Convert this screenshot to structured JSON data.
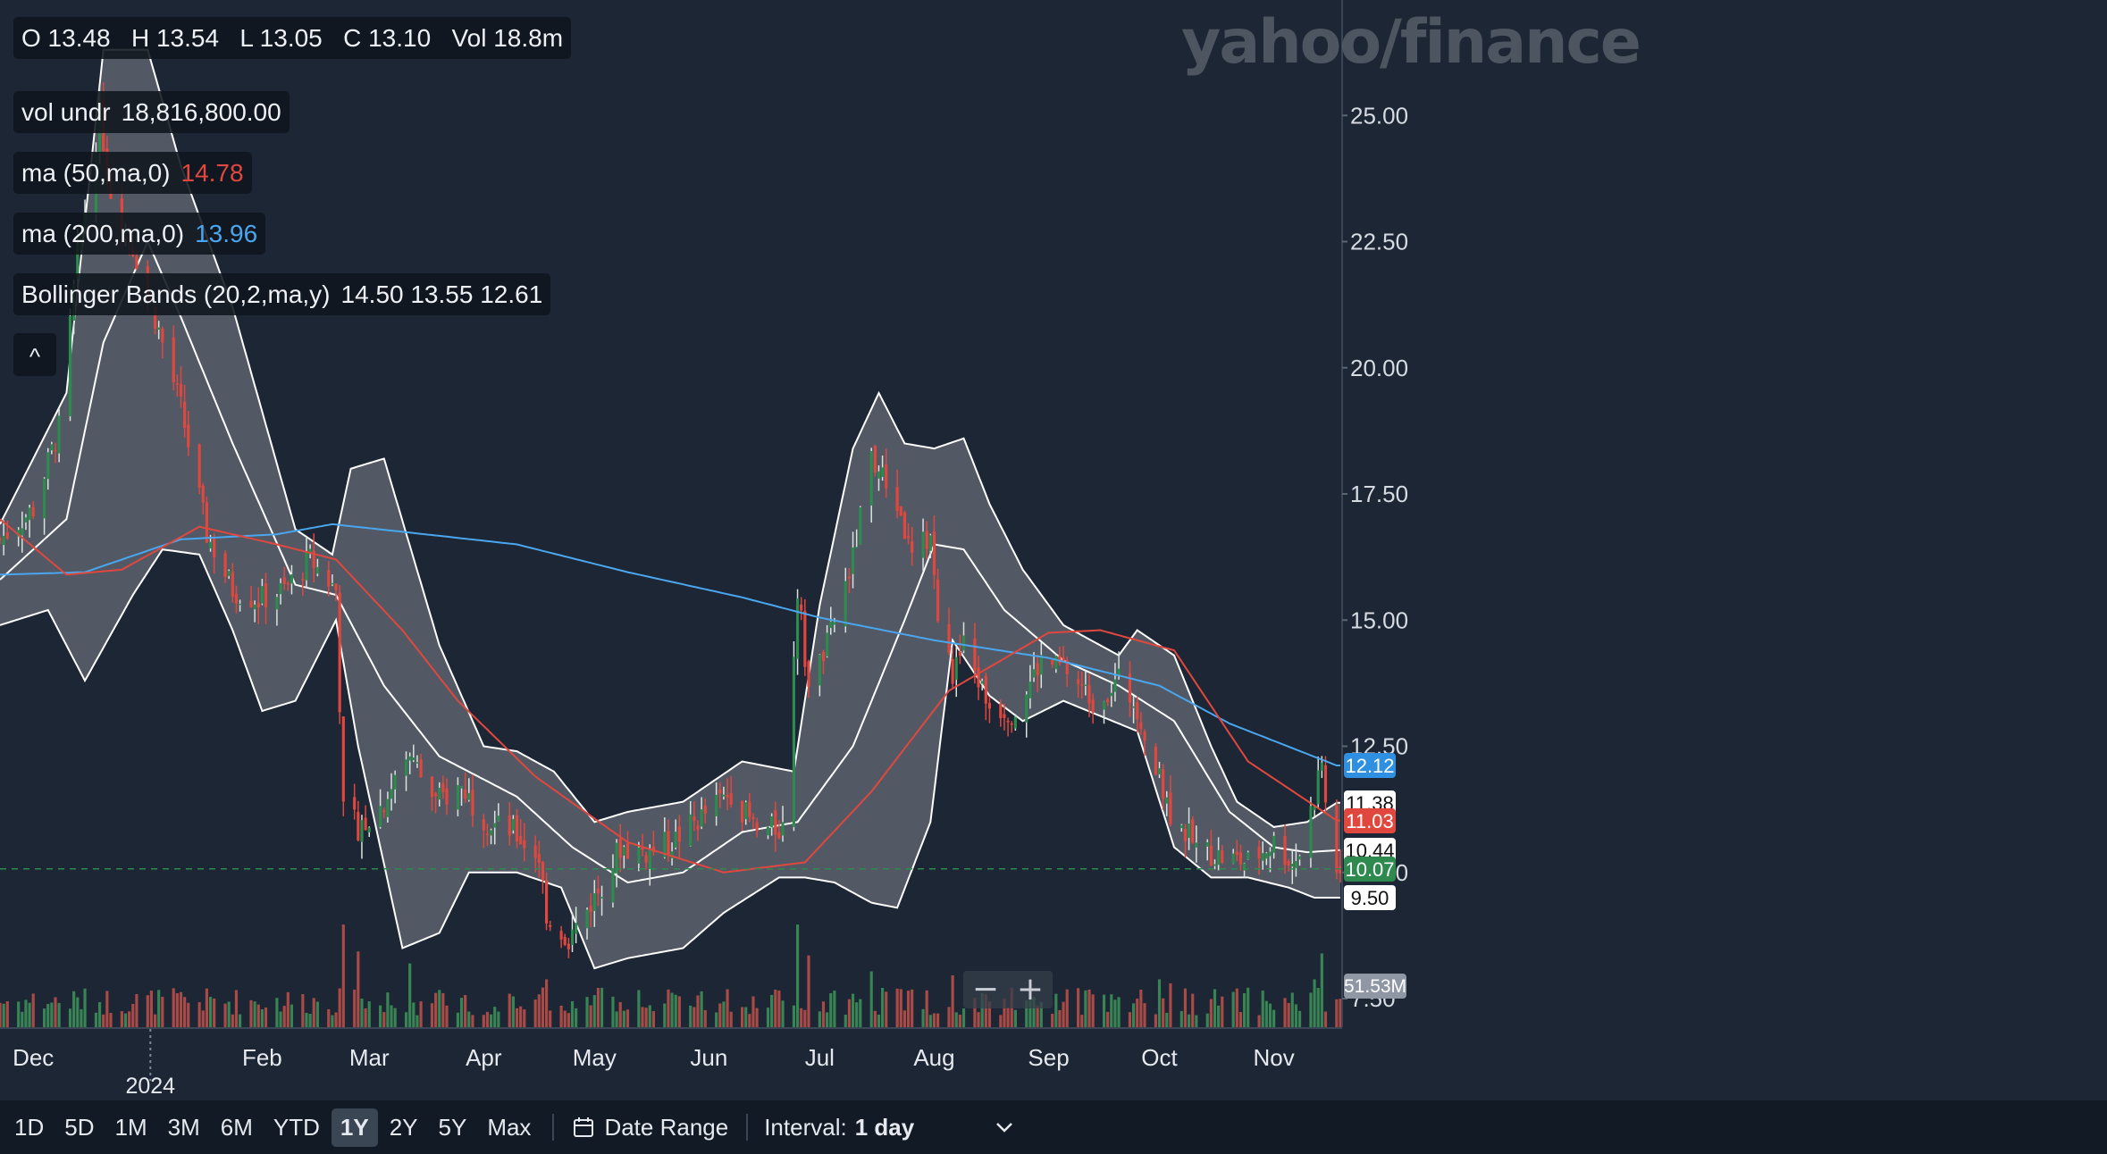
{
  "watermark": "yahoo/finance",
  "legend": {
    "ohlcv": "O 13.48   H 13.54   L 13.05   C 13.10   Vol 18.8m",
    "vol_label": "vol undr",
    "vol_value": "18,816,800.00",
    "ma50_label": "ma (50,ma,0)",
    "ma50_value": "14.78",
    "ma200_label": "ma (200,ma,0)",
    "ma200_value": "13.96",
    "bb_label": "Bollinger Bands (20,2,ma,y)",
    "bb_values": "14.50 13.55 12.61",
    "collapse_icon": "^"
  },
  "zoom": {
    "minus": "−",
    "plus": "+"
  },
  "price_tags": [
    {
      "label": "12.12",
      "value": 12.12,
      "bg": "#2f8fe0",
      "fg": "#ffffff"
    },
    {
      "label": "11.38",
      "value": 11.38,
      "bg": "#ffffff",
      "fg": "#111111"
    },
    {
      "label": "11.03",
      "value": 11.03,
      "bg": "#e0483f",
      "fg": "#ffffff"
    },
    {
      "label": "10.44",
      "value": 10.44,
      "bg": "#ffffff",
      "fg": "#111111"
    },
    {
      "label": "10.07",
      "value": 10.07,
      "bg": "#2e8a4e",
      "fg": "#ffffff"
    },
    {
      "label": "9.50",
      "value": 9.5,
      "bg": "#ffffff",
      "fg": "#111111"
    },
    {
      "label": "51.53M",
      "value": 7.75,
      "bg": "#8e97a3",
      "fg": "#ffffff"
    }
  ],
  "bottom_bar": {
    "ranges": [
      "1D",
      "5D",
      "1M",
      "3M",
      "6M",
      "YTD",
      "1Y",
      "2Y",
      "5Y",
      "Max"
    ],
    "active_range": "1Y",
    "date_range_label": "Date Range",
    "interval_label": "Interval:",
    "interval_value": "1 day"
  },
  "colors": {
    "background": "#1c2634",
    "up": "#2e8a4e",
    "down": "#e0483f",
    "ma50": "#e0483f",
    "ma200": "#4aa6ee",
    "band_fill": "#ffffff",
    "band_line": "#ffffff"
  },
  "chart_data": {
    "type": "candlestick",
    "title": "",
    "x_tick_labels": [
      "Dec",
      "2024",
      "Feb",
      "Mar",
      "Apr",
      "May",
      "Jun",
      "Jul",
      "Aug",
      "Sep",
      "Oct",
      "Nov"
    ],
    "y_ticks": [
      7.5,
      10.0,
      12.5,
      15.0,
      17.5,
      20.0,
      22.5,
      25.0
    ],
    "y_tick_labels": [
      "7.50",
      "10.00",
      "12.50",
      "15.00",
      "17.50",
      "20.00",
      "22.50",
      "25.00"
    ],
    "ylim": [
      7.0,
      27.0
    ],
    "xlim": [
      "2023-11-22",
      "2024-11-19"
    ],
    "last_price": 10.07,
    "legend_values": {
      "open": 13.48,
      "high": 13.54,
      "low": 13.05,
      "close": 13.1,
      "volume": "18.8m"
    },
    "price_anchors": [
      [
        "2023-11-22",
        16.6
      ],
      [
        "2023-12-01",
        17.2
      ],
      [
        "2023-12-08",
        18.8
      ],
      [
        "2023-12-13",
        22.2
      ],
      [
        "2023-12-19",
        25.0
      ],
      [
        "2023-12-22",
        23.5
      ],
      [
        "2023-12-28",
        22.4
      ],
      [
        "2024-01-03",
        21.0
      ],
      [
        "2024-01-10",
        19.2
      ],
      [
        "2024-01-17",
        16.7
      ],
      [
        "2024-01-24",
        15.6
      ],
      [
        "2024-01-31",
        15.4
      ],
      [
        "2024-02-07",
        15.6
      ],
      [
        "2024-02-14",
        16.2
      ],
      [
        "2024-02-21",
        15.6
      ],
      [
        "2024-02-23",
        11.2
      ],
      [
        "2024-02-27",
        10.9
      ],
      [
        "2024-03-04",
        11.3
      ],
      [
        "2024-03-12",
        12.3
      ],
      [
        "2024-03-19",
        11.4
      ],
      [
        "2024-03-26",
        11.7
      ],
      [
        "2024-04-02",
        11.0
      ],
      [
        "2024-04-09",
        10.8
      ],
      [
        "2024-04-16",
        10.3
      ],
      [
        "2024-04-18",
        9.2
      ],
      [
        "2024-04-24",
        8.7
      ],
      [
        "2024-05-01",
        9.5
      ],
      [
        "2024-05-08",
        10.5
      ],
      [
        "2024-05-15",
        10.4
      ],
      [
        "2024-05-22",
        10.6
      ],
      [
        "2024-05-30",
        11.1
      ],
      [
        "2024-06-07",
        11.6
      ],
      [
        "2024-06-14",
        10.8
      ],
      [
        "2024-06-21",
        10.9
      ],
      [
        "2024-06-25",
        15.6
      ],
      [
        "2024-06-28",
        13.6
      ],
      [
        "2024-07-03",
        14.5
      ],
      [
        "2024-07-10",
        16.2
      ],
      [
        "2024-07-15",
        18.2
      ],
      [
        "2024-07-22",
        17.3
      ],
      [
        "2024-07-26",
        16.2
      ],
      [
        "2024-07-31",
        16.7
      ],
      [
        "2024-08-02",
        15.0
      ],
      [
        "2024-08-06",
        13.9
      ],
      [
        "2024-08-09",
        14.5
      ],
      [
        "2024-08-16",
        13.3
      ],
      [
        "2024-08-23",
        13.2
      ],
      [
        "2024-08-30",
        14.2
      ],
      [
        "2024-09-06",
        14.0
      ],
      [
        "2024-09-13",
        13.4
      ],
      [
        "2024-09-20",
        13.8
      ],
      [
        "2024-09-25",
        13.3
      ],
      [
        "2024-09-30",
        12.0
      ],
      [
        "2024-10-04",
        11.2
      ],
      [
        "2024-10-11",
        10.5
      ],
      [
        "2024-10-18",
        10.3
      ],
      [
        "2024-10-25",
        10.2
      ],
      [
        "2024-11-01",
        10.6
      ],
      [
        "2024-11-06",
        10.2
      ],
      [
        "2024-11-08",
        10.4
      ],
      [
        "2024-11-12",
        11.5
      ],
      [
        "2024-11-14",
        12.1
      ],
      [
        "2024-11-18",
        10.07
      ]
    ],
    "ma200_anchors": [
      [
        "2023-11-22",
        15.9
      ],
      [
        "2023-12-15",
        15.95
      ],
      [
        "2024-01-10",
        16.6
      ],
      [
        "2024-02-05",
        16.7
      ],
      [
        "2024-02-20",
        16.9
      ],
      [
        "2024-03-10",
        16.75
      ],
      [
        "2024-04-10",
        16.5
      ],
      [
        "2024-05-10",
        15.95
      ],
      [
        "2024-06-10",
        15.45
      ],
      [
        "2024-07-01",
        15.05
      ],
      [
        "2024-08-01",
        14.6
      ],
      [
        "2024-09-01",
        14.25
      ],
      [
        "2024-10-01",
        13.7
      ],
      [
        "2024-10-20",
        12.95
      ],
      [
        "2024-11-18",
        12.12
      ]
    ],
    "ma50_anchors": [
      [
        "2023-11-22",
        17.0
      ],
      [
        "2023-12-10",
        15.9
      ],
      [
        "2023-12-25",
        16.0
      ],
      [
        "2024-01-15",
        16.85
      ],
      [
        "2024-02-05",
        16.5
      ],
      [
        "2024-02-21",
        16.2
      ],
      [
        "2024-03-10",
        14.8
      ],
      [
        "2024-03-25",
        13.4
      ],
      [
        "2024-04-15",
        11.9
      ],
      [
        "2024-05-10",
        10.6
      ],
      [
        "2024-06-05",
        10.0
      ],
      [
        "2024-06-27",
        10.2
      ],
      [
        "2024-07-15",
        11.6
      ],
      [
        "2024-08-05",
        13.6
      ],
      [
        "2024-09-01",
        14.75
      ],
      [
        "2024-09-15",
        14.8
      ],
      [
        "2024-10-05",
        14.4
      ],
      [
        "2024-10-25",
        12.2
      ],
      [
        "2024-11-18",
        11.03
      ]
    ],
    "bollinger": {
      "upper": [
        [
          "2023-11-22",
          16.9
        ],
        [
          "2023-12-10",
          19.5
        ],
        [
          "2023-12-20",
          26.3
        ],
        [
          "2024-01-01",
          26.3
        ],
        [
          "2024-01-10",
          24.0
        ],
        [
          "2024-01-24",
          21.2
        ],
        [
          "2024-02-10",
          16.8
        ],
        [
          "2024-02-20",
          16.3
        ],
        [
          "2024-02-25",
          18.0
        ],
        [
          "2024-03-05",
          18.2
        ],
        [
          "2024-03-20",
          14.5
        ],
        [
          "2024-04-01",
          12.5
        ],
        [
          "2024-04-10",
          12.4
        ],
        [
          "2024-04-20",
          12.0
        ],
        [
          "2024-05-01",
          11.0
        ],
        [
          "2024-05-10",
          11.2
        ],
        [
          "2024-05-25",
          11.4
        ],
        [
          "2024-06-10",
          12.2
        ],
        [
          "2024-06-24",
          12.0
        ],
        [
          "2024-07-01",
          15.3
        ],
        [
          "2024-07-10",
          18.4
        ],
        [
          "2024-07-17",
          19.5
        ],
        [
          "2024-07-24",
          18.5
        ],
        [
          "2024-08-01",
          18.4
        ],
        [
          "2024-08-09",
          18.6
        ],
        [
          "2024-08-16",
          17.3
        ],
        [
          "2024-08-25",
          16.0
        ],
        [
          "2024-09-05",
          14.9
        ],
        [
          "2024-09-20",
          14.3
        ],
        [
          "2024-09-25",
          14.8
        ],
        [
          "2024-10-05",
          14.3
        ],
        [
          "2024-10-15",
          12.5
        ],
        [
          "2024-10-22",
          11.4
        ],
        [
          "2024-11-01",
          10.9
        ],
        [
          "2024-11-10",
          11.0
        ],
        [
          "2024-11-18",
          11.38
        ]
      ],
      "middle": [
        [
          "2023-11-22",
          15.8
        ],
        [
          "2023-12-10",
          17.0
        ],
        [
          "2023-12-20",
          20.5
        ],
        [
          "2024-01-01",
          22.5
        ],
        [
          "2024-01-10",
          21.0
        ],
        [
          "2024-01-24",
          18.5
        ],
        [
          "2024-02-10",
          15.7
        ],
        [
          "2024-02-21",
          15.5
        ],
        [
          "2024-03-05",
          13.7
        ],
        [
          "2024-03-20",
          12.3
        ],
        [
          "2024-04-10",
          11.5
        ],
        [
          "2024-04-25",
          10.5
        ],
        [
          "2024-05-10",
          9.8
        ],
        [
          "2024-05-25",
          10.0
        ],
        [
          "2024-06-10",
          10.8
        ],
        [
          "2024-06-25",
          11.0
        ],
        [
          "2024-07-10",
          12.5
        ],
        [
          "2024-07-24",
          15.0
        ],
        [
          "2024-08-01",
          16.5
        ],
        [
          "2024-08-09",
          16.4
        ],
        [
          "2024-08-20",
          15.2
        ],
        [
          "2024-09-05",
          14.2
        ],
        [
          "2024-09-20",
          13.7
        ],
        [
          "2024-10-05",
          13.0
        ],
        [
          "2024-10-20",
          11.2
        ],
        [
          "2024-11-01",
          10.5
        ],
        [
          "2024-11-10",
          10.4
        ],
        [
          "2024-11-18",
          10.44
        ]
      ],
      "lower": [
        [
          "2023-11-22",
          14.9
        ],
        [
          "2023-12-05",
          15.2
        ],
        [
          "2023-12-15",
          13.8
        ],
        [
          "2023-12-28",
          15.5
        ],
        [
          "2024-01-05",
          16.4
        ],
        [
          "2024-01-15",
          16.3
        ],
        [
          "2024-01-24",
          14.8
        ],
        [
          "2024-02-01",
          13.2
        ],
        [
          "2024-02-10",
          13.4
        ],
        [
          "2024-02-21",
          15.0
        ],
        [
          "2024-02-27",
          12.5
        ],
        [
          "2024-03-10",
          8.5
        ],
        [
          "2024-03-20",
          8.8
        ],
        [
          "2024-03-28",
          10.0
        ],
        [
          "2024-04-10",
          10.0
        ],
        [
          "2024-04-22",
          9.7
        ],
        [
          "2024-05-01",
          8.1
        ],
        [
          "2024-05-10",
          8.3
        ],
        [
          "2024-05-25",
          8.5
        ],
        [
          "2024-06-05",
          9.2
        ],
        [
          "2024-06-20",
          9.9
        ],
        [
          "2024-06-27",
          9.9
        ],
        [
          "2024-07-05",
          9.8
        ],
        [
          "2024-07-15",
          9.4
        ],
        [
          "2024-07-22",
          9.3
        ],
        [
          "2024-07-31",
          11.0
        ],
        [
          "2024-08-06",
          14.6
        ],
        [
          "2024-08-16",
          13.5
        ],
        [
          "2024-08-25",
          13.0
        ],
        [
          "2024-09-05",
          13.4
        ],
        [
          "2024-09-15",
          13.1
        ],
        [
          "2024-09-25",
          12.8
        ],
        [
          "2024-10-05",
          10.5
        ],
        [
          "2024-10-15",
          9.9
        ],
        [
          "2024-10-25",
          9.9
        ],
        [
          "2024-11-05",
          9.7
        ],
        [
          "2024-11-12",
          9.5
        ],
        [
          "2024-11-18",
          9.5
        ]
      ]
    },
    "volume_unit": "M",
    "volume_max": 51.53,
    "volume_spikes": [
      [
        "2024-02-23",
        51.5
      ],
      [
        "2024-02-27",
        38.0
      ],
      [
        "2024-03-12",
        32.0
      ],
      [
        "2024-04-18",
        24.0
      ],
      [
        "2024-06-25",
        51.5
      ],
      [
        "2024-06-28",
        36.0
      ],
      [
        "2024-07-15",
        28.0
      ],
      [
        "2024-08-06",
        26.0
      ],
      [
        "2024-10-01",
        24.0
      ],
      [
        "2024-10-04",
        22.0
      ],
      [
        "2024-11-12",
        24.0
      ],
      [
        "2024-11-14",
        37.0
      ]
    ]
  }
}
